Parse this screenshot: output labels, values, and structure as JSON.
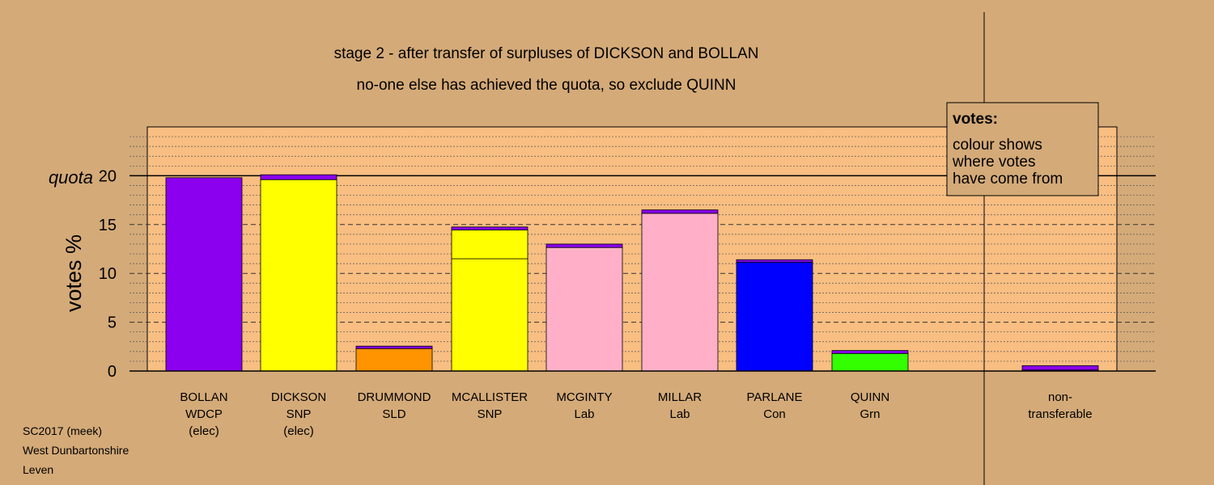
{
  "chart_data": {
    "type": "bar",
    "title": "stage 2 - after transfer of surpluses of DICKSON and BOLLAN",
    "subtitle": "no-one else has achieved the quota, so exclude QUINN",
    "ylabel": "votes %",
    "ylim": [
      0,
      20
    ],
    "yticks": [
      "0",
      "5",
      "10",
      "15",
      "20"
    ],
    "quota_label": "quota",
    "quota": 20,
    "categories": [
      {
        "name": "BOLLAN",
        "party": "WDCP",
        "status": "(elec)"
      },
      {
        "name": "DICKSON",
        "party": "SNP",
        "status": "(elec)"
      },
      {
        "name": "DRUMMOND",
        "party": "SLD",
        "status": ""
      },
      {
        "name": "MCALLISTER",
        "party": "SNP",
        "status": ""
      },
      {
        "name": "MCGINTY",
        "party": "Lab",
        "status": ""
      },
      {
        "name": "MILLAR",
        "party": "Lab",
        "status": ""
      },
      {
        "name": "PARLANE",
        "party": "Con",
        "status": ""
      },
      {
        "name": "QUINN",
        "party": "Grn",
        "status": ""
      }
    ],
    "nontransferable": {
      "line1": "non-",
      "line2": "transferable"
    },
    "bars": [
      {
        "segments": [
          {
            "value": 19.8,
            "color": "#8b00ee"
          }
        ]
      },
      {
        "segments": [
          {
            "value": 19.6,
            "color": "#ffff00"
          },
          {
            "value": 0.5,
            "color": "#8b00ee"
          }
        ]
      },
      {
        "segments": [
          {
            "value": 2.3,
            "color": "#ff9300"
          },
          {
            "value": 0.25,
            "color": "#8b00ee"
          }
        ]
      },
      {
        "segments": [
          {
            "value": 11.5,
            "color": "#ffff00"
          },
          {
            "value": 2.95,
            "color": "#ffff00"
          },
          {
            "value": 0.3,
            "color": "#8b00ee"
          }
        ]
      },
      {
        "segments": [
          {
            "value": 12.65,
            "color": "#ffb0c8"
          },
          {
            "value": 0.35,
            "color": "#8b00ee"
          }
        ]
      },
      {
        "segments": [
          {
            "value": 16.15,
            "color": "#ffb0c8"
          },
          {
            "value": 0.35,
            "color": "#8b00ee"
          }
        ]
      },
      {
        "segments": [
          {
            "value": 11.15,
            "color": "#0000ff"
          },
          {
            "value": 0.25,
            "color": "#8b00ee"
          }
        ]
      },
      {
        "segments": [
          {
            "value": 1.8,
            "color": "#33ff00"
          },
          {
            "value": 0.3,
            "color": "#8b00ee"
          }
        ]
      }
    ],
    "nontransferable_bar": {
      "segments": [
        {
          "value": 0.1,
          "color": "#8b00ee"
        },
        {
          "value": 0.45,
          "color": "#8b00ee"
        }
      ]
    },
    "legend": {
      "title": "votes:",
      "lines": [
        "colour shows",
        "where votes",
        "have come from"
      ]
    }
  },
  "footer": {
    "line1": "SC2017 (meek)",
    "line2": "West Dunbartonshire",
    "line3": "Leven"
  },
  "colors": {
    "background": "#d4aa78",
    "plot_area": "#f8be82",
    "legend_box": "#d4aa78"
  }
}
